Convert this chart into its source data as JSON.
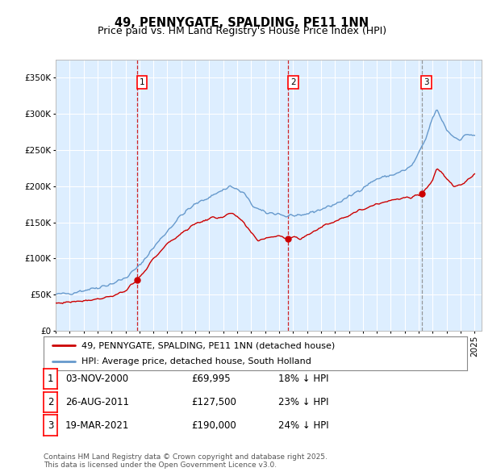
{
  "title": "49, PENNYGATE, SPALDING, PE11 1NN",
  "subtitle": "Price paid vs. HM Land Registry's House Price Index (HPI)",
  "ylabel_ticks": [
    "£0",
    "£50K",
    "£100K",
    "£150K",
    "£200K",
    "£250K",
    "£300K",
    "£350K"
  ],
  "ytick_values": [
    0,
    50000,
    100000,
    150000,
    200000,
    250000,
    300000,
    350000
  ],
  "ylim": [
    0,
    375000
  ],
  "xlim_start": 1995.0,
  "xlim_end": 2025.5,
  "plot_bg_color": "#ddeeff",
  "grid_color": "#ffffff",
  "red_line_color": "#cc0000",
  "blue_line_color": "#6699cc",
  "vline_color_red": "#cc0000",
  "vline_color_grey": "#888888",
  "marker_dates": [
    2000.84,
    2011.65,
    2021.21
  ],
  "marker_values_red": [
    69995,
    127500,
    190000
  ],
  "transaction_labels": [
    "1",
    "2",
    "3"
  ],
  "legend_line1": "49, PENNYGATE, SPALDING, PE11 1NN (detached house)",
  "legend_line2": "HPI: Average price, detached house, South Holland",
  "table_rows": [
    [
      "1",
      "03-NOV-2000",
      "£69,995",
      "18% ↓ HPI"
    ],
    [
      "2",
      "26-AUG-2011",
      "£127,500",
      "23% ↓ HPI"
    ],
    [
      "3",
      "19-MAR-2021",
      "£190,000",
      "24% ↓ HPI"
    ]
  ],
  "footnote": "Contains HM Land Registry data © Crown copyright and database right 2025.\nThis data is licensed under the Open Government Licence v3.0.",
  "title_fontsize": 10.5,
  "subtitle_fontsize": 9,
  "tick_fontsize": 7.5,
  "legend_fontsize": 8,
  "table_fontsize": 8.5,
  "footnote_fontsize": 6.5
}
